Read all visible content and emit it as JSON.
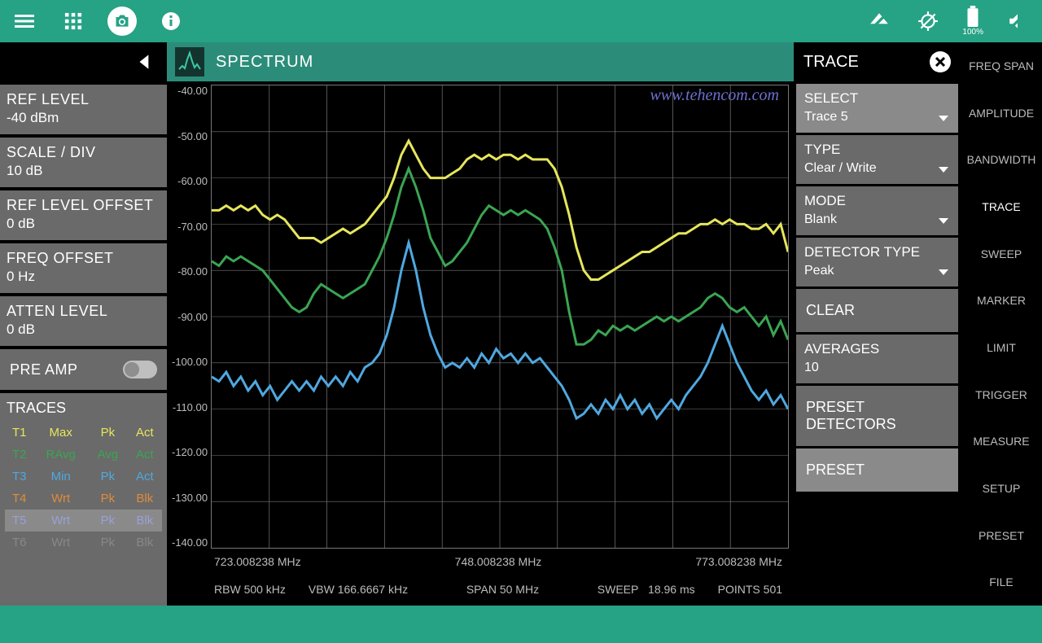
{
  "topbar": {
    "battery_pct": "100%"
  },
  "mode": {
    "title": "SPECTRUM"
  },
  "watermark": "www.tehencom.com",
  "left_params": [
    {
      "label": "REF LEVEL",
      "value": "-40 dBm"
    },
    {
      "label": "SCALE / DIV",
      "value": "10 dB"
    },
    {
      "label": "REF LEVEL OFFSET",
      "value": "0 dB"
    },
    {
      "label": "FREQ OFFSET",
      "value": "0 Hz"
    },
    {
      "label": "ATTEN LEVEL",
      "value": "0 dB"
    }
  ],
  "preamp": {
    "label": "PRE AMP",
    "on": false
  },
  "traces_panel": {
    "title": "TRACES",
    "rows": [
      {
        "id": "T1",
        "c1": "Max",
        "c2": "Pk",
        "c3": "Act",
        "color": "#e6e65c",
        "selected": false
      },
      {
        "id": "T2",
        "c1": "RAvg",
        "c2": "Avg",
        "c3": "Act",
        "color": "#3aa552",
        "selected": false
      },
      {
        "id": "T3",
        "c1": "Min",
        "c2": "Pk",
        "c3": "Act",
        "color": "#4fa8e0",
        "selected": false
      },
      {
        "id": "T4",
        "c1": "Wrt",
        "c2": "Pk",
        "c3": "Blk",
        "color": "#e08b3a",
        "selected": false
      },
      {
        "id": "T5",
        "c1": "Wrt",
        "c2": "Pk",
        "c3": "Blk",
        "color": "#9aa0d6",
        "selected": true
      },
      {
        "id": "T6",
        "c1": "Wrt",
        "c2": "Pk",
        "c3": "Blk",
        "color": "#888888",
        "selected": false
      }
    ]
  },
  "chart": {
    "ylim": [
      -140,
      -40
    ],
    "ytick_step": 10,
    "yticks": [
      "-40.00",
      "-50.00",
      "-60.00",
      "-70.00",
      "-80.00",
      "-90.00",
      "-100.00",
      "-110.00",
      "-120.00",
      "-130.00",
      "-140.00"
    ],
    "xlabels": [
      "723.008238 MHz",
      "748.008238 MHz",
      "773.008238 MHz"
    ],
    "grid_cols": 10,
    "grid_rows": 10,
    "background": "#000000",
    "grid_color": "#777777",
    "traces": [
      {
        "name": "T1",
        "color": "#e6e65c",
        "width": 1.5,
        "values": [
          -67,
          -67,
          -66,
          -67,
          -66,
          -67,
          -66,
          -68,
          -69,
          -68,
          -69,
          -71,
          -73,
          -73,
          -73,
          -74,
          -73,
          -72,
          -71,
          -72,
          -71,
          -70,
          -68,
          -66,
          -64,
          -60,
          -55,
          -52,
          -55,
          -58,
          -60,
          -60,
          -60,
          -59,
          -58,
          -56,
          -55,
          -56,
          -55,
          -56,
          -55,
          -55,
          -56,
          -55,
          -56,
          -56,
          -56,
          -58,
          -62,
          -68,
          -75,
          -80,
          -82,
          -82,
          -81,
          -80,
          -79,
          -78,
          -77,
          -76,
          -76,
          -75,
          -74,
          -73,
          -72,
          -72,
          -71,
          -70,
          -70,
          -69,
          -70,
          -69,
          -70,
          -70,
          -71,
          -71,
          -70,
          -72,
          -70,
          -76
        ]
      },
      {
        "name": "T2",
        "color": "#3aa552",
        "width": 1.5,
        "values": [
          -78,
          -79,
          -77,
          -78,
          -77,
          -78,
          -79,
          -80,
          -82,
          -84,
          -86,
          -88,
          -89,
          -88,
          -85,
          -83,
          -84,
          -85,
          -86,
          -85,
          -84,
          -83,
          -80,
          -77,
          -73,
          -68,
          -62,
          -58,
          -62,
          -67,
          -73,
          -76,
          -79,
          -78,
          -76,
          -74,
          -71,
          -68,
          -66,
          -67,
          -68,
          -67,
          -68,
          -67,
          -68,
          -69,
          -71,
          -75,
          -80,
          -89,
          -96,
          -96,
          -95,
          -93,
          -94,
          -92,
          -93,
          -92,
          -93,
          -92,
          -91,
          -90,
          -91,
          -90,
          -91,
          -90,
          -89,
          -88,
          -86,
          -85,
          -86,
          -88,
          -89,
          -88,
          -90,
          -92,
          -90,
          -94,
          -91,
          -95
        ]
      },
      {
        "name": "T3",
        "color": "#4fa8e0",
        "width": 1.5,
        "values": [
          -103,
          -104,
          -102,
          -105,
          -103,
          -106,
          -104,
          -107,
          -105,
          -108,
          -106,
          -104,
          -106,
          -104,
          -106,
          -103,
          -105,
          -103,
          -105,
          -102,
          -104,
          -101,
          -100,
          -98,
          -94,
          -88,
          -80,
          -74,
          -80,
          -88,
          -94,
          -98,
          -101,
          -100,
          -101,
          -99,
          -101,
          -98,
          -100,
          -97,
          -99,
          -98,
          -100,
          -98,
          -100,
          -99,
          -101,
          -103,
          -105,
          -108,
          -112,
          -111,
          -109,
          -111,
          -108,
          -110,
          -107,
          -110,
          -108,
          -111,
          -109,
          -112,
          -110,
          -108,
          -110,
          -107,
          -105,
          -103,
          -100,
          -96,
          -92,
          -96,
          -100,
          -103,
          -106,
          -108,
          -106,
          -109,
          -107,
          -110
        ]
      }
    ]
  },
  "status": {
    "rbw_label": "RBW",
    "rbw_val": "500 kHz",
    "vbw_label": "VBW",
    "vbw_val": "166.6667 kHz",
    "span_label": "SPAN",
    "span_val": "50 MHz",
    "sweep_label": "SWEEP",
    "sweep_val": "18.96 ms",
    "points_label": "POINTS",
    "points_val": "501"
  },
  "trace_panel": {
    "title": "TRACE",
    "items": [
      {
        "label": "SELECT",
        "value": "Trace 5",
        "type": "drop",
        "selected": true
      },
      {
        "label": "TYPE",
        "value": "Clear / Write",
        "type": "drop"
      },
      {
        "label": "MODE",
        "value": "Blank",
        "type": "drop"
      },
      {
        "label": "DETECTOR TYPE",
        "value": "Peak",
        "type": "drop"
      },
      {
        "label": "CLEAR",
        "type": "btn"
      },
      {
        "label": "AVERAGES",
        "value": "10",
        "type": "val"
      },
      {
        "label": "PRESET DETECTORS",
        "type": "btn"
      },
      {
        "label": "PRESET",
        "type": "btn",
        "selected": true
      }
    ]
  },
  "menu": [
    "FREQ SPAN",
    "AMPLITUDE",
    "BANDWIDTH",
    "TRACE",
    "SWEEP",
    "MARKER",
    "LIMIT",
    "TRIGGER",
    "MEASURE",
    "SETUP",
    "PRESET",
    "FILE"
  ],
  "menu_active_index": 3
}
